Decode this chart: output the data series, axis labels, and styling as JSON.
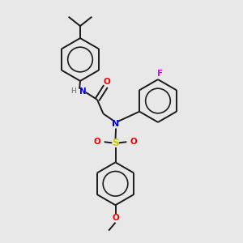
{
  "background_color": "#e8e8e8",
  "bond_color": "#1a1a1a",
  "atom_colors": {
    "N": "#0000ee",
    "O": "#ee0000",
    "F": "#ee00ee",
    "S": "#cccc00",
    "H": "#2a8080",
    "C": "#1a1a1a"
  },
  "figsize": [
    3.0,
    3.0
  ],
  "dpi": 100
}
